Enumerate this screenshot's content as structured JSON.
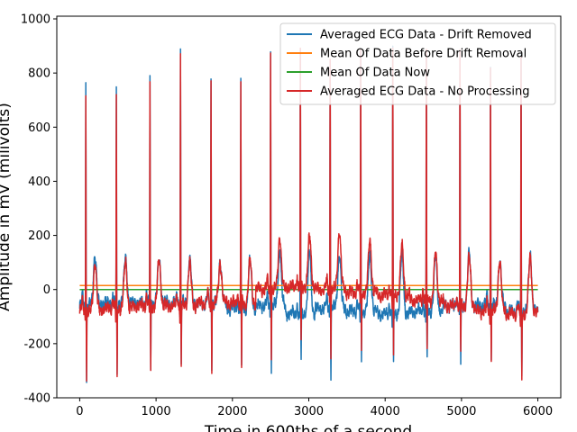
{
  "chart_data": {
    "type": "line",
    "title": "",
    "xlabel": "Time in 600ths of a second",
    "ylabel": "Amplitude in mV (milivolts)",
    "xlim": [
      -300,
      6300
    ],
    "ylim": [
      -400,
      1010
    ],
    "x_ticks": [
      0,
      1000,
      2000,
      3000,
      4000,
      5000,
      6000
    ],
    "y_ticks": [
      -400,
      -200,
      0,
      200,
      400,
      600,
      800,
      1000
    ],
    "grid": false,
    "legend_position": "top-right",
    "ecg": {
      "x_start": 0,
      "x_end": 6000,
      "beats": [
        80,
        480,
        920,
        1320,
        1720,
        2110,
        2500,
        2890,
        3280,
        3680,
        4100,
        4540,
        4980,
        5380,
        5780
      ],
      "peaks_drift_removed": [
        780,
        745,
        790,
        880,
        790,
        775,
        890,
        880,
        870,
        880,
        880,
        875,
        865,
        835,
        860
      ],
      "peaks_no_processing": [
        745,
        720,
        775,
        870,
        780,
        770,
        895,
        890,
        880,
        885,
        885,
        880,
        870,
        830,
        855
      ],
      "troughs_drift_removed": [
        -335,
        -325,
        -300,
        -280,
        -280,
        -290,
        -290,
        -260,
        -325,
        -280,
        -290,
        -275,
        -270,
        -260,
        -325
      ],
      "troughs_no_processing": [
        -335,
        -325,
        -305,
        -285,
        -285,
        -280,
        -250,
        -200,
        -240,
        -240,
        -250,
        -230,
        -230,
        -260,
        -325
      ],
      "t_wave_drift_removed": [
        130,
        115,
        115,
        110,
        105,
        105,
        150,
        140,
        135,
        130,
        130,
        120,
        130,
        110,
        130
      ],
      "t_wave_no_processing": [
        100,
        100,
        110,
        100,
        100,
        105,
        200,
        195,
        220,
        180,
        160,
        130,
        120,
        110,
        125
      ],
      "baseline_drift_removed": [
        -60,
        -50,
        -50,
        -50,
        -50,
        -70,
        -60,
        -90,
        -70,
        -80,
        -90,
        -80,
        -60,
        -60,
        -80
      ],
      "baseline_no_processing": [
        -80,
        -70,
        -60,
        -60,
        -50,
        -50,
        0,
        10,
        0,
        -10,
        -20,
        -40,
        -60,
        -80,
        -90
      ]
    },
    "series": [
      {
        "name": "Averaged ECG Data - Drift Removed",
        "color": "#1f77b4",
        "kind": "ecg",
        "variant": "drift_removed"
      },
      {
        "name": "Mean Of Data Before Drift Removal",
        "color": "#ff7f0e",
        "kind": "constant",
        "value": 15
      },
      {
        "name": "Mean Of Data Now",
        "color": "#2ca02c",
        "kind": "constant",
        "value": 0
      },
      {
        "name": "Averaged ECG Data - No Processing",
        "color": "#d62728",
        "kind": "ecg",
        "variant": "no_processing"
      }
    ]
  }
}
